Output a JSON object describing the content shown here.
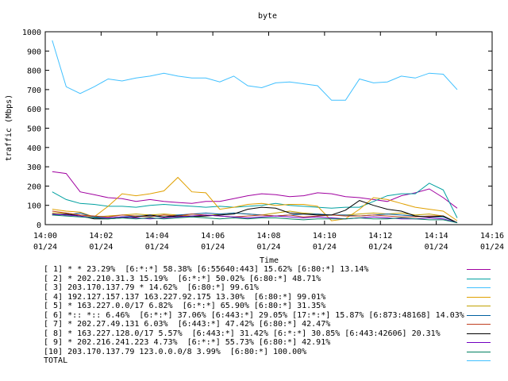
{
  "chart_data": {
    "type": "line",
    "title": "byte",
    "xlabel": "Time",
    "ylabel": "traffic (Mbps)",
    "ylim": [
      0,
      1000
    ],
    "xlim": [
      "14:00",
      "14:16"
    ],
    "grid": false,
    "legend_position": "bottom",
    "y_ticks": [
      "0",
      "100",
      "200",
      "300",
      "400",
      "500",
      "600",
      "700",
      "800",
      "900",
      "1000"
    ],
    "x_ticks": [
      {
        "time": "14:00",
        "date": "01/24"
      },
      {
        "time": "14:02",
        "date": "01/24"
      },
      {
        "time": "14:04",
        "date": "01/24"
      },
      {
        "time": "14:06",
        "date": "01/24"
      },
      {
        "time": "14:08",
        "date": "01/24"
      },
      {
        "time": "14:10",
        "date": "01/24"
      },
      {
        "time": "14:12",
        "date": "01/24"
      },
      {
        "time": "14:14",
        "date": "01/24"
      },
      {
        "time": "14:16",
        "date": "01/24"
      }
    ],
    "x": [
      "14:00:15",
      "14:00:45",
      "14:01:15",
      "14:01:45",
      "14:02:15",
      "14:02:45",
      "14:03:15",
      "14:03:45",
      "14:04:15",
      "14:04:45",
      "14:05:15",
      "14:05:45",
      "14:06:15",
      "14:06:45",
      "14:07:15",
      "14:07:45",
      "14:08:15",
      "14:08:45",
      "14:09:15",
      "14:09:45",
      "14:10:15",
      "14:10:45",
      "14:11:15",
      "14:11:45",
      "14:12:15",
      "14:12:45",
      "14:13:15",
      "14:13:45",
      "14:14:15",
      "14:14:45"
    ],
    "series": [
      {
        "name": "[ 1] * * 23.29%  [6:*:*] 58.38% [6:55640:443] 15.62% [6:80:*] 13.14%",
        "color": "#a000a0",
        "values": [
          275,
          265,
          170,
          155,
          140,
          135,
          120,
          130,
          120,
          115,
          110,
          120,
          120,
          135,
          150,
          160,
          155,
          145,
          150,
          165,
          160,
          145,
          140,
          130,
          120,
          150,
          165,
          185,
          140,
          85
        ]
      },
      {
        "name": "[ 2] * 202.210.31.3 15.19%  [6:*:*] 50.02% [6:80:*] 48.71%",
        "color": "#00a0a0",
        "values": [
          170,
          130,
          110,
          105,
          95,
          95,
          90,
          100,
          105,
          100,
          95,
          90,
          95,
          90,
          95,
          100,
          110,
          100,
          95,
          90,
          85,
          90,
          90,
          120,
          150,
          160,
          160,
          215,
          180,
          35
        ]
      },
      {
        "name": "[ 3] 203.170.137.79 * 14.62%  [6:80:*] 99.61%",
        "color": "#40c0ff",
        "values": [
          955,
          715,
          680,
          715,
          755,
          745,
          760,
          770,
          785,
          770,
          760,
          760,
          740,
          770,
          720,
          710,
          735,
          740,
          730,
          720,
          645,
          645,
          755,
          735,
          740,
          770,
          760,
          785,
          780,
          700
        ]
      },
      {
        "name": "[ 4] 192.127.157.137 163.227.92.175 13.30%  [6:80:*] 99.01%",
        "color": "#e0a000",
        "values": [
          80,
          70,
          65,
          40,
          95,
          160,
          150,
          160,
          175,
          245,
          170,
          165,
          80,
          90,
          105,
          110,
          100,
          105,
          105,
          95,
          20,
          30,
          80,
          140,
          130,
          110,
          90,
          80,
          70,
          20
        ]
      },
      {
        "name": "[ 5] * 163.227.0.0/17 6.82%  [6:*:*] 65.90% [6:80:*] 31.35%",
        "color": "#c0a000",
        "values": [
          60,
          60,
          50,
          40,
          45,
          50,
          55,
          50,
          55,
          50,
          45,
          45,
          55,
          60,
          55,
          50,
          60,
          70,
          60,
          55,
          50,
          50,
          55,
          60,
          55,
          60,
          50,
          55,
          45,
          10
        ]
      },
      {
        "name": "[ 6] *:: *:: 6.46%  [6:*:*] 37.06% [6:443:*] 29.05% [17:*:*] 15.87% [6:873:48168] 14.03%",
        "color": "#0060a0",
        "values": [
          55,
          50,
          60,
          40,
          35,
          40,
          45,
          45,
          40,
          50,
          55,
          60,
          55,
          60,
          55,
          50,
          45,
          50,
          55,
          55,
          50,
          50,
          45,
          50,
          55,
          50,
          45,
          40,
          40,
          10
        ]
      },
      {
        "name": "[ 7] * 202.27.49.131 6.03%  [6:443:*] 47.42% [6:80:*] 42.47%",
        "color": "#c04020",
        "values": [
          70,
          60,
          50,
          45,
          40,
          50,
          45,
          40,
          50,
          45,
          55,
          50,
          45,
          40,
          45,
          50,
          45,
          50,
          40,
          45,
          50,
          45,
          45,
          50,
          45,
          40,
          40,
          45,
          45,
          10
        ]
      },
      {
        "name": "[ 8] * 163.227.128.0/17 5.57%  [6:443:*] 31.42% [6:*:*] 30.85% [6:443:42606] 20.31%",
        "color": "#000000",
        "values": [
          50,
          55,
          45,
          30,
          30,
          35,
          40,
          50,
          40,
          45,
          40,
          45,
          50,
          55,
          80,
          90,
          85,
          60,
          55,
          50,
          50,
          75,
          125,
          100,
          80,
          70,
          45,
          40,
          45,
          10
        ]
      },
      {
        "name": "[ 9] * 202.216.241.223 4.73%  [6:*:*] 55.73% [6:80:*] 42.91%",
        "color": "#7000c0",
        "values": [
          55,
          50,
          45,
          35,
          35,
          40,
          35,
          30,
          35,
          40,
          45,
          50,
          45,
          40,
          35,
          40,
          45,
          40,
          35,
          40,
          35,
          30,
          35,
          40,
          35,
          30,
          30,
          35,
          30,
          10
        ]
      },
      {
        "name": "[10] 203.170.137.79 123.0.0.0/8 3.99%  [6:80:*] 100.00%",
        "color": "#008060",
        "values": [
          50,
          45,
          40,
          35,
          30,
          35,
          30,
          35,
          30,
          35,
          40,
          35,
          30,
          35,
          30,
          35,
          35,
          30,
          25,
          30,
          30,
          30,
          35,
          30,
          30,
          35,
          30,
          25,
          25,
          10
        ]
      }
    ],
    "total_label": "TOTAL",
    "total_color": "#40c0ff"
  }
}
